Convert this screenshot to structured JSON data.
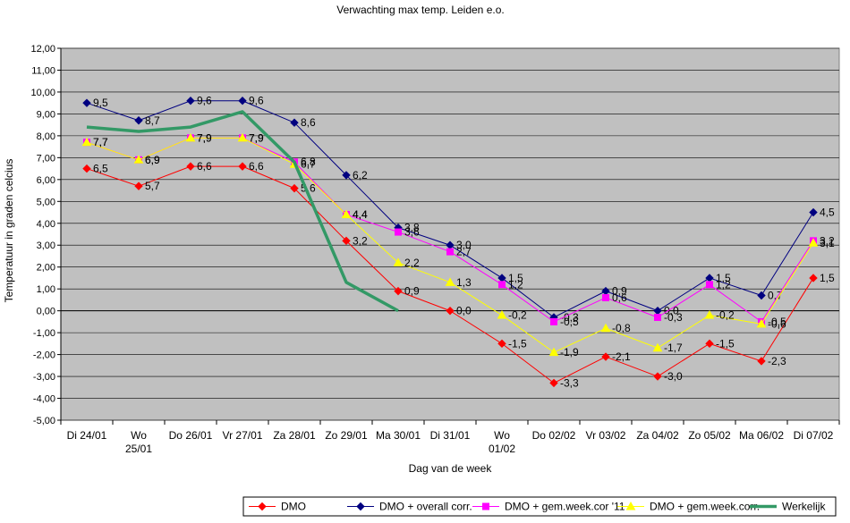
{
  "chart_data": {
    "type": "line",
    "title": "Verwachting max temp. Leiden e.o.",
    "xlabel": "Dag van de week",
    "ylabel": "Temperatuur in graden celcius",
    "ylim": [
      -5,
      12
    ],
    "yticks": [
      "12,00",
      "11,00",
      "10,00",
      "9,00",
      "8,00",
      "7,00",
      "6,00",
      "5,00",
      "4,00",
      "3,00",
      "2,00",
      "1,00",
      "0,00",
      "-1,00",
      "-2,00",
      "-3,00",
      "-4,00",
      "-5,00"
    ],
    "categories": [
      [
        "Di 24/01"
      ],
      [
        "Wo",
        "25/01"
      ],
      [
        "Do 26/01"
      ],
      [
        "Vr 27/01"
      ],
      [
        "Za 28/01"
      ],
      [
        "Zo 29/01"
      ],
      [
        "Ma 30/01"
      ],
      [
        "Di 31/01"
      ],
      [
        "Wo",
        "01/02"
      ],
      [
        "Do 02/02"
      ],
      [
        "Vr 03/02"
      ],
      [
        "Za 04/02"
      ],
      [
        "Zo 05/02"
      ],
      [
        "Ma 06/02"
      ],
      [
        "Di 07/02"
      ]
    ],
    "grid": true,
    "plot_background": "#c0c0c0",
    "legend_position": "bottom-right",
    "series": [
      {
        "name": "DMO",
        "color": "#ff0000",
        "marker": "diamond",
        "values": [
          6.5,
          5.7,
          6.6,
          6.6,
          5.6,
          3.2,
          0.9,
          0.0,
          -1.5,
          -3.3,
          -2.1,
          -3.0,
          -1.5,
          -2.3,
          1.5
        ],
        "labels": [
          "6,5",
          "5,7",
          "6,6",
          "6,6",
          "5,6",
          "3,2",
          "0,9",
          "0,0",
          "-1,5",
          "-3,3",
          "-2,1",
          "-3,0",
          "-1,5",
          "-2,3",
          "1,5"
        ]
      },
      {
        "name": "DMO + overall corr.",
        "color": "#000080",
        "marker": "diamond",
        "values": [
          9.5,
          8.7,
          9.6,
          9.6,
          8.6,
          6.2,
          3.8,
          3.0,
          1.5,
          -0.3,
          0.9,
          0.0,
          1.5,
          0.7,
          4.5
        ],
        "labels": [
          "9,5",
          "8,7",
          "9,6",
          "9,6",
          "8,6",
          "6,2",
          "3,8",
          "3,0",
          "1,5",
          "-0,3",
          "0,9",
          "0,0",
          "1,5",
          "0,7",
          "4,5"
        ]
      },
      {
        "name": "DMO + gem.week.cor '11",
        "color": "#ff00ff",
        "marker": "square",
        "values": [
          7.7,
          6.9,
          7.9,
          7.9,
          6.8,
          4.4,
          3.6,
          2.7,
          1.2,
          -0.5,
          0.6,
          -0.3,
          1.2,
          -0.5,
          3.2
        ],
        "labels": [
          "7,7",
          "6,9",
          "7,9",
          "7,9",
          "6,8",
          "4,4",
          "3,6",
          "2,7",
          "1,2",
          "-0,5",
          "0,6",
          "-0,3",
          "1,2",
          "-0,5",
          "3,2"
        ]
      },
      {
        "name": "DMO + gem.week.corr.",
        "color": "#ffff00",
        "marker": "triangle",
        "values": [
          7.7,
          6.9,
          7.9,
          7.9,
          6.7,
          4.4,
          2.2,
          1.3,
          -0.2,
          -1.9,
          -0.8,
          -1.7,
          -0.2,
          -0.6,
          3.1
        ],
        "labels": [
          "7,7",
          "6,9",
          "7,9",
          "7,9",
          "6,7",
          "4,4",
          "2,2",
          "1,3",
          "-0,2",
          "-1,9",
          "-0,8",
          "-1,7",
          "-0,2",
          "-0,6",
          "3,1"
        ]
      },
      {
        "name": "Werkelijk",
        "color": "#339966",
        "marker": "none",
        "values": [
          8.4,
          8.2,
          8.4,
          9.1,
          6.8,
          1.3,
          0.0,
          null,
          null,
          null,
          null,
          null,
          null,
          null,
          null
        ],
        "labels": []
      }
    ]
  }
}
